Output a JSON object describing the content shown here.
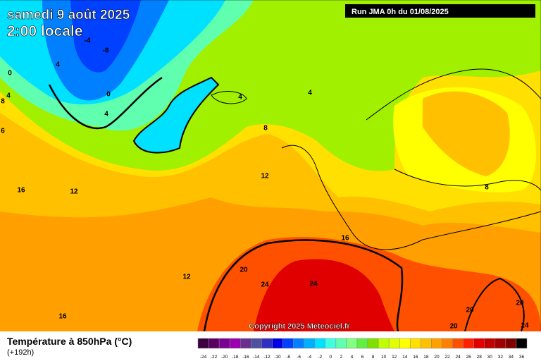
{
  "header": {
    "date": "samedi 9 août 2025",
    "time": "2:00 locale",
    "run": "Run JMA 0h du 01/08/2025"
  },
  "map": {
    "contour_labels": [
      -4,
      -8,
      4,
      0,
      4,
      8,
      0,
      4,
      4,
      4,
      8,
      6,
      16,
      12,
      12,
      8,
      16,
      20,
      24,
      24,
      12,
      16,
      20,
      20,
      20,
      24
    ]
  },
  "footer": {
    "title": "Température à 850hPa (°C)",
    "lead": "(+192h)",
    "copyright": "Copyright 2025 Meteociel.fr"
  },
  "legend": {
    "labels": [
      -24,
      -22,
      -20,
      -18,
      -16,
      -14,
      -12,
      -10,
      -8,
      -6,
      -4,
      -2,
      0,
      2,
      4,
      6,
      8,
      10,
      12,
      14,
      16,
      18,
      20,
      22,
      24,
      26,
      28,
      30,
      32,
      34,
      36
    ],
    "colors": [
      "#3c0040",
      "#5a0060",
      "#7a0090",
      "#9a00b0",
      "#6a3090",
      "#5050a0",
      "#3030c0",
      "#0000e0",
      "#0040ff",
      "#0080ff",
      "#00b0ff",
      "#00e0ff",
      "#40ffe0",
      "#60ffb0",
      "#80ff80",
      "#60f040",
      "#80e000",
      "#c0ff00",
      "#e0ff00",
      "#ffff00",
      "#ffe000",
      "#ffc000",
      "#ffa000",
      "#ff8000",
      "#ff5000",
      "#ff2000",
      "#e00000",
      "#c00000",
      "#a00000",
      "#800000",
      "#000000"
    ]
  }
}
